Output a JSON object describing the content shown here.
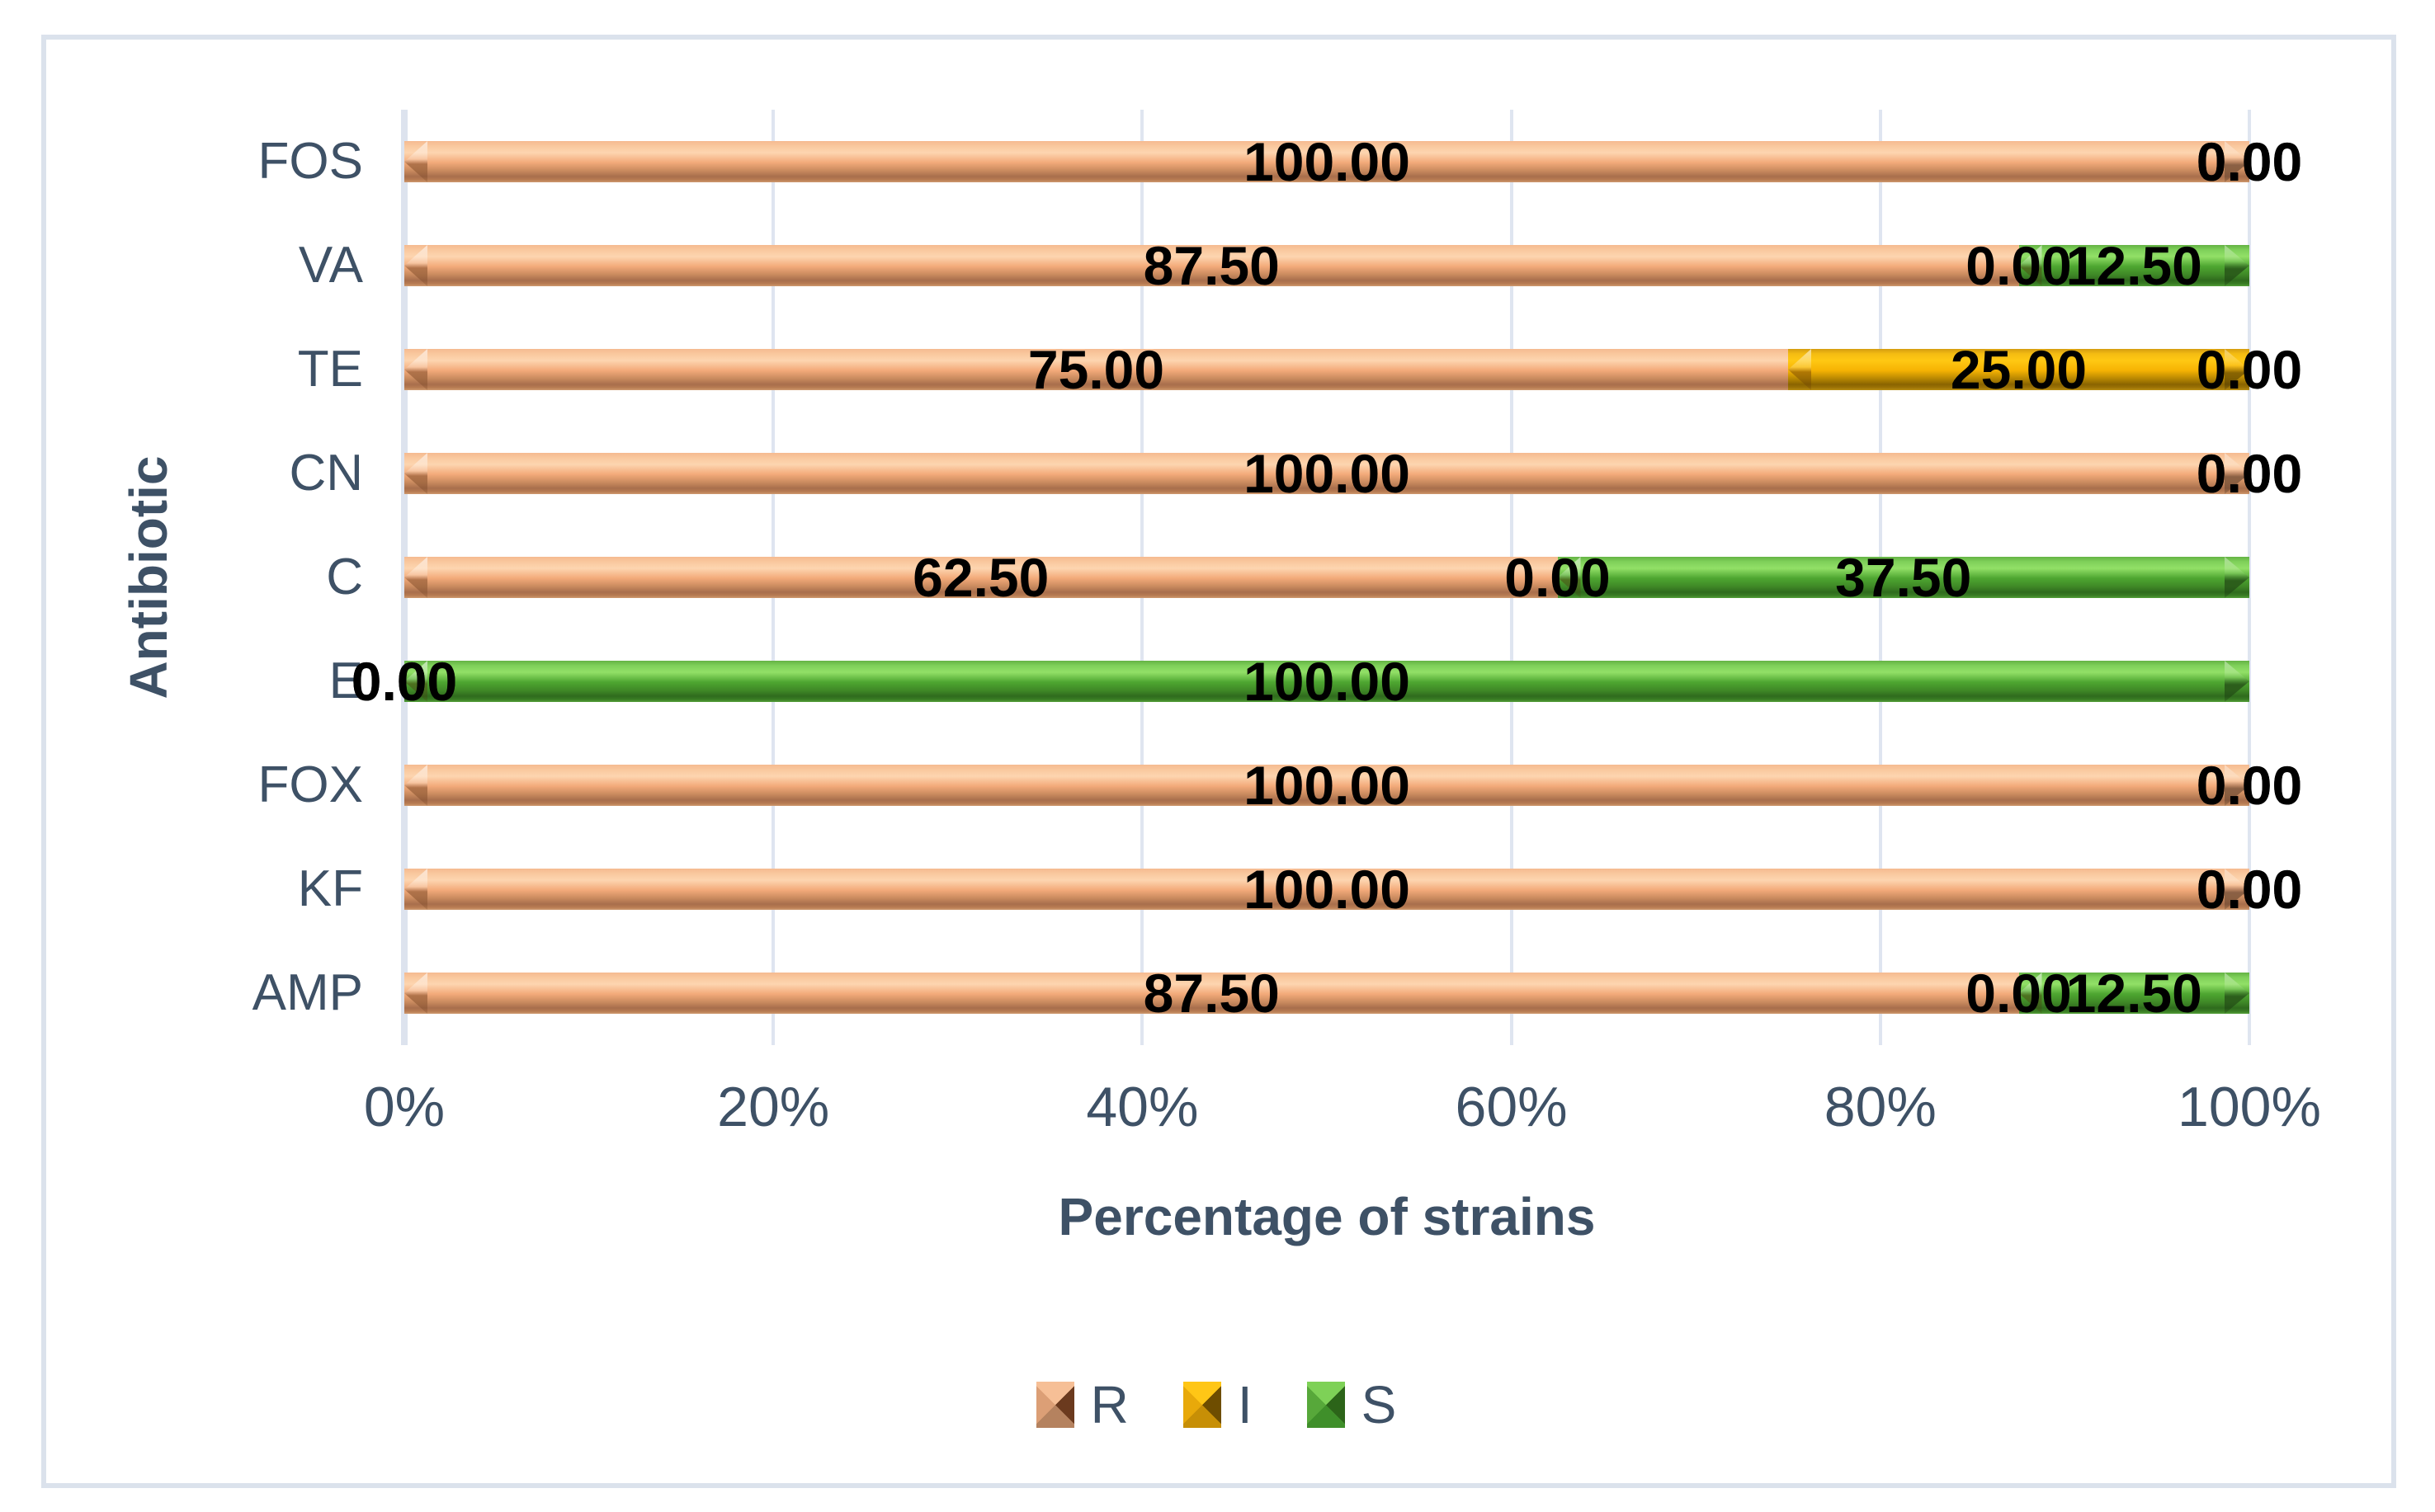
{
  "chart_data": {
    "type": "bar",
    "orientation": "horizontal",
    "stacked": true,
    "title": "",
    "xlabel": "Percentage of strains",
    "ylabel": "Antibiotic",
    "xlim": [
      0,
      100
    ],
    "x_ticks": [
      "0%",
      "20%",
      "40%",
      "60%",
      "80%",
      "100%"
    ],
    "grid": "vertical",
    "legend_position": "bottom",
    "categories": [
      "FOS",
      "VA",
      "TE",
      "CN",
      "C",
      "E",
      "FOX",
      "KF",
      "AMP"
    ],
    "series": [
      {
        "name": "R",
        "color": "#F2A876",
        "values": [
          100,
          87.5,
          75,
          100,
          62.5,
          0,
          100,
          100,
          87.5
        ],
        "labels": [
          "100.00",
          "87.50",
          "75.00",
          "100.00",
          "62.50",
          "0.00",
          "100.00",
          "100.00",
          "87.50"
        ]
      },
      {
        "name": "I",
        "color": "#F5B50C",
        "values": [
          0,
          0,
          25,
          0,
          0,
          0,
          0,
          0,
          0
        ],
        "labels": [
          "0.00",
          "0.00",
          "25.00",
          "0.00",
          "0.00",
          "0.00",
          "0.00",
          "0.00",
          "0.00"
        ]
      },
      {
        "name": "S",
        "color": "#57A93A",
        "values": [
          0,
          12.5,
          0,
          0,
          37.5,
          100,
          0,
          0,
          12.5
        ],
        "labels": [
          "0.00",
          "12.50",
          "0.00",
          "0.00",
          "37.50",
          "100.00",
          "0.00",
          "0.00",
          "12.50"
        ]
      }
    ]
  },
  "legend": {
    "items": [
      {
        "label": "R"
      },
      {
        "label": "I"
      },
      {
        "label": "S"
      }
    ]
  },
  "style_tokens": {
    "text_color": "#3E5166",
    "grid_color": "#DFE5F0",
    "frame_color": "#DBE2EC",
    "data_label_color": "#000000"
  }
}
